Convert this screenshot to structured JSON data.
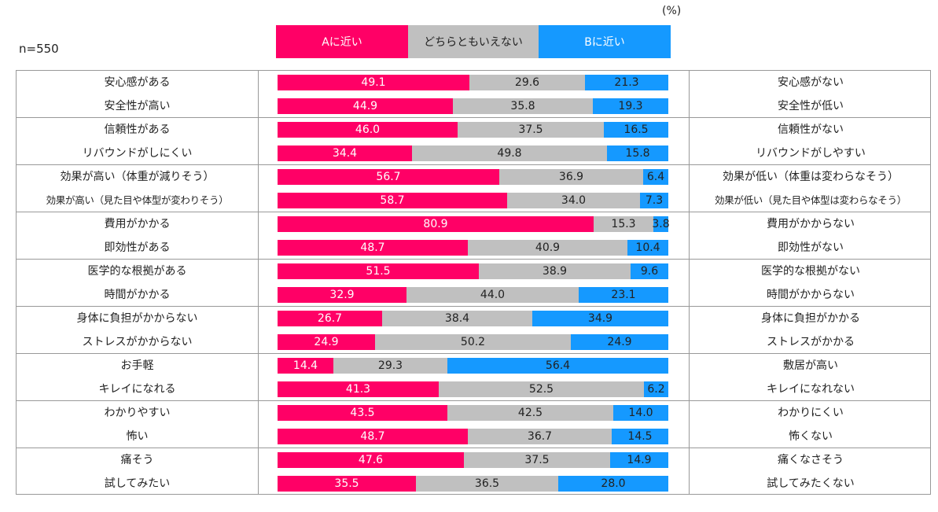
{
  "unit_label": "(%)",
  "sample_label": "n=550",
  "legend": {
    "a": "Aに近い",
    "m": "どちらともいえない",
    "b": "Bに近い"
  },
  "colors": {
    "a": "#ff0066",
    "m": "#c0c0c0",
    "b": "#1599ff"
  },
  "chart_data": {
    "type": "bar",
    "orientation": "horizontal",
    "stacked": true,
    "series": [
      {
        "name": "Aに近い",
        "values": [
          49.1,
          44.9,
          46.0,
          34.4,
          56.7,
          58.7,
          80.9,
          48.7,
          51.5,
          32.9,
          26.7,
          24.9,
          14.4,
          41.3,
          43.5,
          48.7,
          47.6,
          35.5
        ]
      },
      {
        "name": "どちらともいえない",
        "values": [
          29.6,
          35.8,
          37.5,
          49.8,
          36.9,
          34.0,
          15.3,
          40.9,
          38.9,
          44.0,
          38.4,
          50.2,
          29.3,
          52.5,
          42.5,
          36.7,
          37.5,
          36.5
        ]
      },
      {
        "name": "Bに近い",
        "values": [
          21.3,
          19.3,
          16.5,
          15.8,
          6.4,
          7.3,
          3.8,
          10.4,
          9.6,
          23.1,
          34.9,
          24.9,
          56.4,
          6.2,
          14.0,
          14.5,
          14.9,
          28.0
        ]
      }
    ],
    "rows": [
      {
        "a_label": "安心感がある",
        "b_label": "安心感がない"
      },
      {
        "a_label": "安全性が高い",
        "b_label": "安全性が低い"
      },
      {
        "a_label": "信頼性がある",
        "b_label": "信頼性がない"
      },
      {
        "a_label": "リバウンドがしにくい",
        "b_label": "リバウンドがしやすい"
      },
      {
        "a_label": "効果が高い（体重が減りそう）",
        "b_label": "効果が低い（体重は変わらなそう）"
      },
      {
        "a_label": "効果が高い（見た目や体型が変わりそう）",
        "b_label": "効果が低い（見た目や体型は変わらなそう）"
      },
      {
        "a_label": "費用がかかる",
        "b_label": "費用がかからない"
      },
      {
        "a_label": "即効性がある",
        "b_label": "即効性がない"
      },
      {
        "a_label": "医学的な根拠がある",
        "b_label": "医学的な根拠がない"
      },
      {
        "a_label": "時間がかかる",
        "b_label": "時間がかからない"
      },
      {
        "a_label": "身体に負担がかからない",
        "b_label": "身体に負担がかかる"
      },
      {
        "a_label": "ストレスがかからない",
        "b_label": "ストレスがかかる"
      },
      {
        "a_label": "お手軽",
        "b_label": "敷居が高い"
      },
      {
        "a_label": "キレイになれる",
        "b_label": "キレイになれない"
      },
      {
        "a_label": "わかりやすい",
        "b_label": "わかりにくい"
      },
      {
        "a_label": "怖い",
        "b_label": "怖くない"
      },
      {
        "a_label": "痛そう",
        "b_label": "痛くなさそう"
      },
      {
        "a_label": "試してみたい",
        "b_label": "試してみたくない"
      }
    ],
    "xlim": [
      0,
      100
    ]
  }
}
